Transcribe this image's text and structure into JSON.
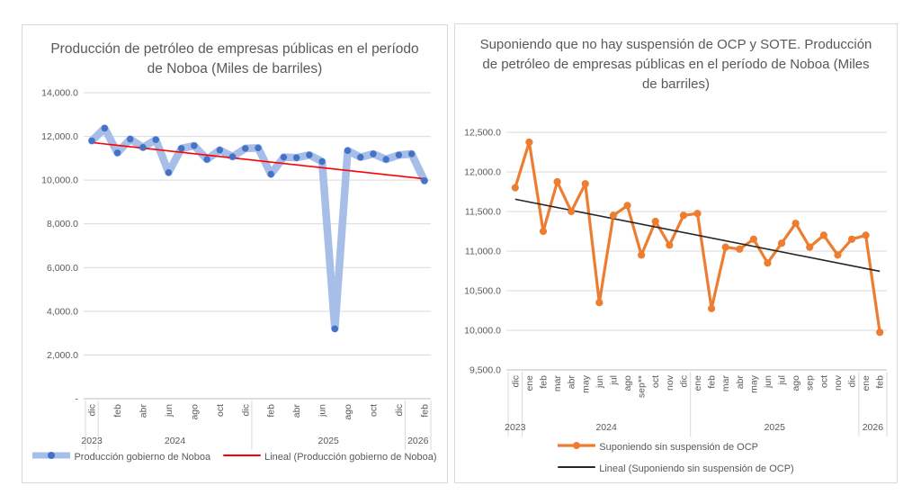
{
  "chart_data": [
    {
      "id": "produccion-noboa",
      "type": "line",
      "title": "Producción de petróleo de empresas públicas en el período de Noboa (Miles de barriles)",
      "ylim": [
        0,
        14000
      ],
      "y_tick_labels_top_down": [
        "14,000.0",
        "12,000.0",
        "10,000.0",
        "8,000.0",
        "6,000.0",
        "4,000.0",
        "2,000.0",
        "-"
      ],
      "grid": true,
      "categories": [
        "dic",
        "ene",
        "feb",
        "mar",
        "abr",
        "may",
        "jun",
        "jul",
        "ago",
        "sep",
        "oct",
        "nov",
        "dic",
        "ene",
        "feb",
        "mar",
        "abr",
        "may",
        "jun",
        "jul",
        "ago",
        "sep",
        "oct",
        "nov",
        "dic",
        "ene",
        "feb"
      ],
      "month_label_every": 2,
      "year_groups": [
        {
          "label": "2023",
          "from": 0,
          "to": 0
        },
        {
          "label": "2024",
          "from": 1,
          "to": 12
        },
        {
          "label": "2025",
          "from": 13,
          "to": 24
        },
        {
          "label": "2026",
          "from": 25,
          "to": 26
        }
      ],
      "series": [
        {
          "name": "Producción gobierno de Noboa",
          "line_color": "#a6bee8",
          "marker_color": "#4472c4",
          "line_width": 8.5,
          "marker_radius": 3.7,
          "values": [
            11800,
            12375,
            11250,
            11875,
            11500,
            11850,
            10350,
            11450,
            11575,
            10950,
            11375,
            11075,
            11450,
            11475,
            10275,
            11050,
            11025,
            11150,
            10850,
            3200,
            11350,
            11050,
            11200,
            10950,
            11150,
            11200,
            9975
          ]
        }
      ],
      "trend": {
        "name": "Lineal (Producción gobierno de Noboa)",
        "color": "#ff0000",
        "start_value": 11720,
        "end_value": 10060
      },
      "legend": [
        {
          "label": "Producción gobierno de Noboa",
          "swatch": "thick-line-dot",
          "line_color": "#a6bee8",
          "marker_color": "#4472c4"
        },
        {
          "label": "Lineal (Producción gobierno de Noboa)",
          "swatch": "line",
          "line_color": "#ff0000"
        }
      ],
      "legend_position": "bottom"
    },
    {
      "id": "produccion-sin-suspension",
      "type": "line",
      "title": "Suponiendo que no hay suspensión de OCP y SOTE. Producción de petróleo de empresas públicas en el período de Noboa (Miles de barriles)",
      "ylim": [
        9500,
        12500
      ],
      "y_tick_labels_top_down": [
        "12,500.0",
        "12,000.0",
        "11,500.0",
        "11,000.0",
        "10,500.0",
        "10,000.0",
        "9,500.0"
      ],
      "grid": true,
      "categories": [
        "dic",
        "ene",
        "feb",
        "mar",
        "abr",
        "may",
        "jun",
        "jul",
        "ago",
        "sep**",
        "oct",
        "nov",
        "dic",
        "ene",
        "feb",
        "mar",
        "abr",
        "may",
        "jun",
        "jul",
        "ago",
        "sep",
        "oct",
        "nov",
        "dic",
        "ene",
        "feb"
      ],
      "month_label_every": 1,
      "year_groups": [
        {
          "label": "2023",
          "from": 0,
          "to": 0
        },
        {
          "label": "2024",
          "from": 1,
          "to": 12
        },
        {
          "label": "2025",
          "from": 13,
          "to": 24
        },
        {
          "label": "2026",
          "from": 25,
          "to": 26
        }
      ],
      "series": [
        {
          "name": "Suponiendo sin suspensión de OCP",
          "line_color": "#ed7d31",
          "marker_color": "#ed7d31",
          "line_width": 3.2,
          "marker_radius": 4.1,
          "values": [
            11800,
            12375,
            11250,
            11875,
            11500,
            11850,
            10350,
            11450,
            11575,
            10950,
            11375,
            11075,
            11450,
            11475,
            10275,
            11050,
            11025,
            11150,
            10850,
            11100,
            11350,
            11050,
            11200,
            10950,
            11150,
            11200,
            9975
          ]
        }
      ],
      "trend": {
        "name": "Lineal (Suponiendo sin suspensión de OCP)",
        "color": "#262626",
        "start_value": 11655,
        "end_value": 10745
      },
      "legend": [
        {
          "label": "Suponiendo sin suspensión de OCP",
          "swatch": "line-dot",
          "line_color": "#ed7d31",
          "marker_color": "#ed7d31"
        },
        {
          "label": "Lineal (Suponiendo sin suspensión de OCP)",
          "swatch": "line",
          "line_color": "#262626"
        }
      ],
      "legend_position": "bottom"
    }
  ]
}
